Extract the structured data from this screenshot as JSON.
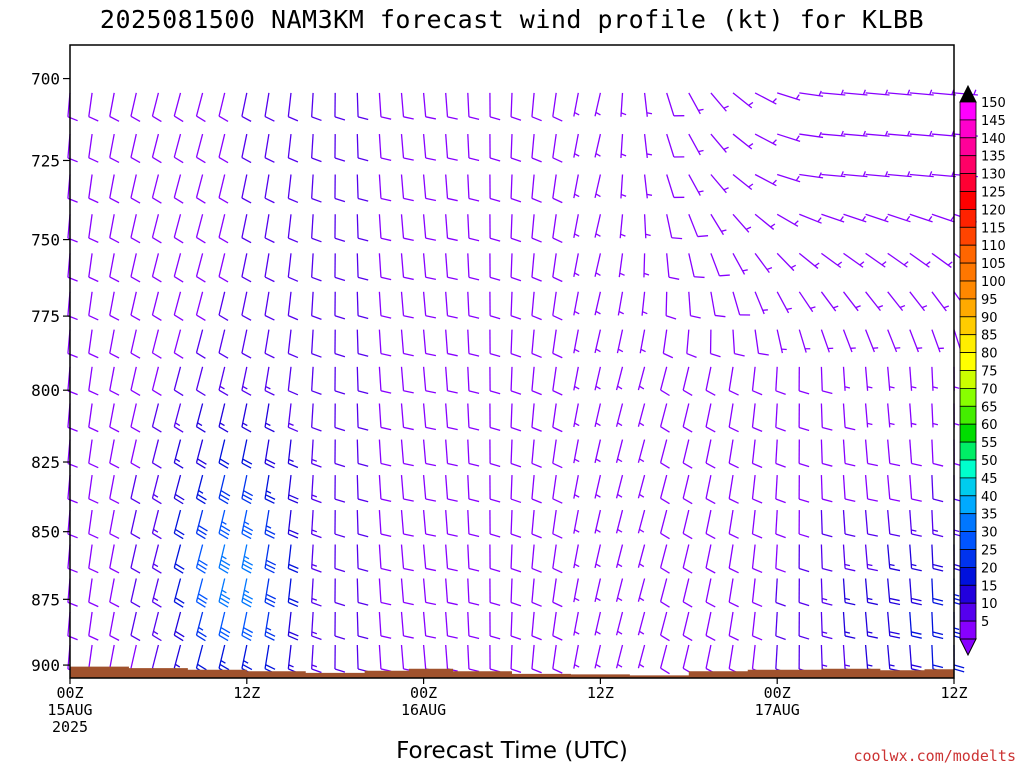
{
  "chart_data": {
    "type": "wind-barb-time-height",
    "title": "2025081500 NAM3KM forecast wind profile (kt) for KLBB",
    "xlabel": "Forecast Time (UTC)",
    "ylabel": "",
    "x_hours_range": [
      0,
      60
    ],
    "pressure_range_hpa": [
      905,
      690
    ],
    "y_ticks": [
      "700",
      "725",
      "750",
      "775",
      "800",
      "825",
      "850",
      "875",
      "900"
    ],
    "x_ticks": [
      {
        "hour": 0,
        "lines": [
          "00Z",
          "15AUG",
          "2025"
        ]
      },
      {
        "hour": 12,
        "lines": [
          "12Z"
        ]
      },
      {
        "hour": 24,
        "lines": [
          "00Z",
          "16AUG"
        ]
      },
      {
        "hour": 36,
        "lines": [
          "12Z"
        ]
      },
      {
        "hour": 48,
        "lines": [
          "00Z",
          "17AUG"
        ]
      },
      {
        "hour": 60,
        "lines": [
          "12Z"
        ]
      }
    ],
    "colorbar": {
      "labels": [
        "150",
        "145",
        "140",
        "135",
        "130",
        "125",
        "120",
        "115",
        "110",
        "105",
        "100",
        "95",
        "90",
        "85",
        "80",
        "75",
        "70",
        "65",
        "60",
        "55",
        "50",
        "45",
        "40",
        "35",
        "30",
        "25",
        "20",
        "15",
        "10",
        "5"
      ],
      "colors": [
        "#ff00ff",
        "#ff00cc",
        "#ff0099",
        "#ff0066",
        "#ff0033",
        "#ff0000",
        "#ff2200",
        "#ff4400",
        "#ff6600",
        "#ff7700",
        "#ff8800",
        "#ffaa00",
        "#ffcc00",
        "#ffee00",
        "#ffff00",
        "#ccff00",
        "#88ff00",
        "#44ee00",
        "#00dd00",
        "#00ee66",
        "#00ffcc",
        "#00ccee",
        "#00aaff",
        "#0077ff",
        "#0055ff",
        "#0033ee",
        "#0011dd",
        "#2200dd",
        "#5500ee",
        "#8800ff"
      ]
    },
    "surface_pressure_hpa": [
      {
        "hour": 0,
        "p": 900.6
      },
      {
        "hour": 4,
        "p": 901.2
      },
      {
        "hour": 8,
        "p": 901.8
      },
      {
        "hour": 12,
        "p": 902.4
      },
      {
        "hour": 16,
        "p": 903.0
      },
      {
        "hour": 20,
        "p": 902.2
      },
      {
        "hour": 23,
        "p": 901.4
      },
      {
        "hour": 26,
        "p": 902.4
      },
      {
        "hour": 30,
        "p": 903.4
      },
      {
        "hour": 34,
        "p": 903.6
      },
      {
        "hour": 38,
        "p": 904.0
      },
      {
        "hour": 42,
        "p": 902.4
      },
      {
        "hour": 46,
        "p": 901.8
      },
      {
        "hour": 51,
        "p": 901.4
      },
      {
        "hour": 55,
        "p": 902.0
      },
      {
        "hour": 58,
        "p": 901.6
      },
      {
        "hour": 60,
        "p": 901.2
      }
    ],
    "wind_summary": [
      {
        "hours": [
          0,
          6
        ],
        "levels_hpa": [
          690,
          900
        ],
        "speed_kt": [
          5,
          30
        ],
        "direction": "southerly"
      },
      {
        "hours": [
          6,
          16
        ],
        "levels_hpa": [
          780,
          900
        ],
        "speed_kt": [
          20,
          40
        ],
        "direction": "southerly"
      },
      {
        "hours": [
          16,
          42
        ],
        "levels_hpa": [
          690,
          900
        ],
        "speed_kt": [
          5,
          25
        ],
        "direction": "southerly"
      },
      {
        "hours": [
          42,
          60
        ],
        "levels_hpa": [
          690,
          780
        ],
        "speed_kt": [
          5,
          15
        ],
        "direction": "easterly"
      },
      {
        "hours": [
          48,
          60
        ],
        "levels_hpa": [
          820,
          900
        ],
        "speed_kt": [
          15,
          30
        ],
        "direction": "southerly"
      }
    ],
    "terrain_color": "#a0522d"
  },
  "footer": {
    "credit": "coolwx.com/modelts"
  }
}
